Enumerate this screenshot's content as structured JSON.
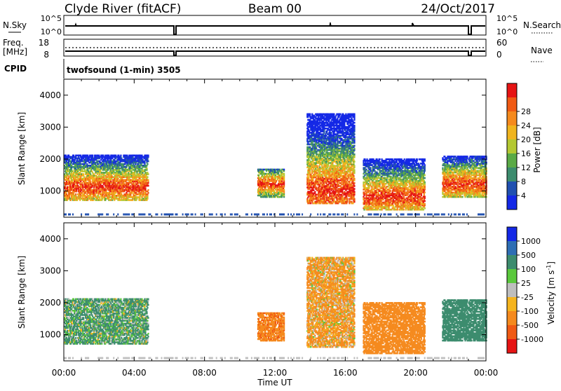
{
  "header": {
    "station": "Clyde River (fitACF)",
    "beam": "Beam 00",
    "date": "24/Oct/2017"
  },
  "top_panels": {
    "nsky_label": "N.Sky",
    "nsky_ticks": [
      "10^5",
      "10^0"
    ],
    "nsearch_label": "N.Search",
    "nsearch_ticks": [
      "10^5",
      "10^0"
    ],
    "freq_label_1": "Freq.",
    "freq_label_2": "[MHz]",
    "freq_ticks": [
      "18",
      "8"
    ],
    "nave_label": "Nave",
    "nave_ticks": [
      "60",
      "0"
    ],
    "cpid_label": "CPID",
    "cpid_value": "twofsound (1-min) 3505"
  },
  "chart_data": [
    {
      "type": "heatmap",
      "name": "power",
      "ylabel": "Slant Range [km]",
      "ylim": [
        180,
        4500
      ],
      "yticks": [
        "1000",
        "2000",
        "3000",
        "4000"
      ],
      "colorbar": {
        "label": "Power [dB]",
        "ticks": [
          "4",
          "8",
          "12",
          "16",
          "20",
          "24",
          "28"
        ],
        "colors": [
          "#1428e6",
          "#2050b0",
          "#3c8c6e",
          "#5aaa46",
          "#b4c832",
          "#f0b41e",
          "#f58a1e",
          "#f05a14",
          "#e61414"
        ]
      },
      "echo_regions": [
        {
          "start_hour": 0.0,
          "end_hour": 4.8,
          "range_min_km": 700,
          "range_max_km": 2100,
          "peak_db": 30
        },
        {
          "start_hour": 11.0,
          "end_hour": 12.5,
          "range_min_km": 800,
          "range_max_km": 1700,
          "peak_db": 26
        },
        {
          "start_hour": 13.8,
          "end_hour": 16.5,
          "range_min_km": 600,
          "range_max_km": 3400,
          "peak_db": 30
        },
        {
          "start_hour": 17.0,
          "end_hour": 20.5,
          "range_min_km": 400,
          "range_max_km": 2000,
          "peak_db": 28
        },
        {
          "start_hour": 21.5,
          "end_hour": 24.0,
          "range_min_km": 800,
          "range_max_km": 2100,
          "peak_db": 28
        }
      ]
    },
    {
      "type": "heatmap",
      "name": "velocity",
      "ylabel": "Slant Range [km]",
      "xlabel": "Time UT",
      "xticks": [
        "00:00",
        "04:00",
        "08:00",
        "12:00",
        "16:00",
        "20:00",
        "00:00"
      ],
      "ylim": [
        180,
        4500
      ],
      "yticks": [
        "1000",
        "2000",
        "3000",
        "4000"
      ],
      "colorbar": {
        "label": "Velocity [m s",
        "label_sup": "-1",
        "label_end": "]",
        "ticks": [
          "1000",
          "500",
          "100",
          "25",
          "-25",
          "-100",
          "-500",
          "-1000"
        ],
        "colors": [
          "#1428e6",
          "#2e6eb4",
          "#3c8c6e",
          "#5ac83c",
          "#bebebe",
          "#f5b41e",
          "#f58a1e",
          "#f05a14",
          "#e61414"
        ]
      },
      "echo_regions": [
        {
          "start_hour": 0.0,
          "end_hour": 4.8,
          "range_min_km": 700,
          "range_max_km": 2100,
          "velocity_ms": 150
        },
        {
          "start_hour": 11.0,
          "end_hour": 12.5,
          "range_min_km": 800,
          "range_max_km": 1700,
          "velocity_ms": -400
        },
        {
          "start_hour": 13.8,
          "end_hour": 16.5,
          "range_min_km": 600,
          "range_max_km": 3400,
          "velocity_ms": -150
        },
        {
          "start_hour": 17.0,
          "end_hour": 20.5,
          "range_min_km": 400,
          "range_max_km": 2000,
          "velocity_ms": -300
        },
        {
          "start_hour": 21.5,
          "end_hour": 24.0,
          "range_min_km": 800,
          "range_max_km": 2100,
          "velocity_ms": 300
        }
      ]
    }
  ]
}
